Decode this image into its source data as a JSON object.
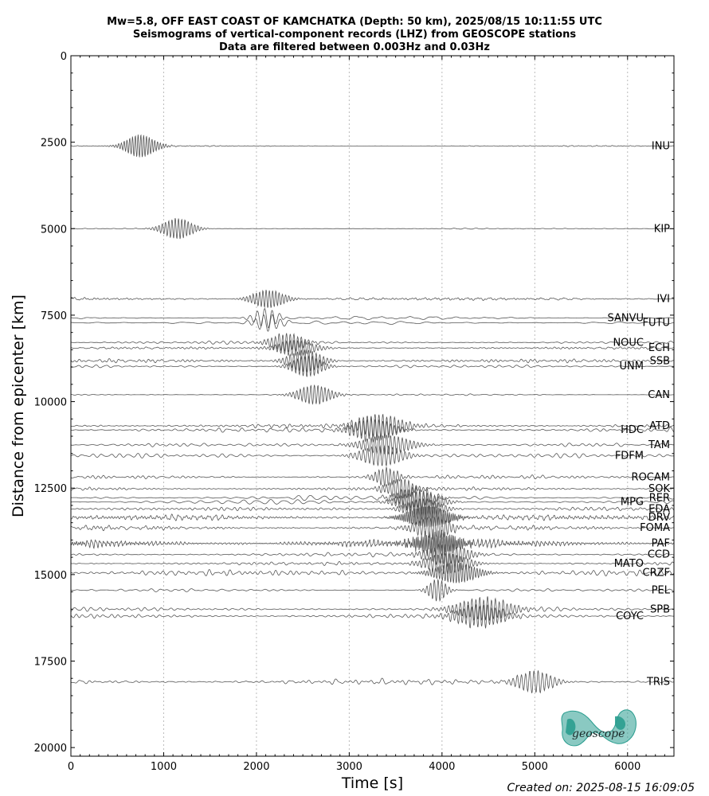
{
  "chart_data": {
    "type": "line",
    "title": [
      "Mw=5.8, OFF EAST COAST OF KAMCHATKA (Depth: 50 km), 2025/08/15 10:11:55 UTC",
      "Seismograms of vertical-component records (LHZ) from GEOSCOPE stations",
      "Data are filtered between 0.003Hz and 0.03Hz"
    ],
    "xlabel": "Time [s]",
    "ylabel": "Distance from epicenter [km]",
    "xlim": [
      0,
      6500
    ],
    "ylim": [
      20250,
      0
    ],
    "y_inverted": true,
    "x_ticks": [
      0,
      1000,
      2000,
      3000,
      4000,
      5000,
      6000
    ],
    "y_ticks": [
      0,
      2500,
      5000,
      7500,
      10000,
      12500,
      15000,
      17500,
      20000
    ],
    "grid": "dotted vertical lines at x ticks",
    "trace_color": "#555555",
    "stations": [
      {
        "name": "INU",
        "distance": 2610,
        "burst_start": 500,
        "burst_end": 1000,
        "burst_amp": 330,
        "noise_amp": 15,
        "period": 30,
        "label_side": "right"
      },
      {
        "name": "KIP",
        "distance": 5000,
        "burst_start": 900,
        "burst_end": 1400,
        "burst_amp": 300,
        "noise_amp": 12,
        "period": 35,
        "label_side": "right"
      },
      {
        "name": "IVI",
        "distance": 7030,
        "burst_start": 1850,
        "burst_end": 2400,
        "burst_amp": 260,
        "noise_amp": 40,
        "period": 35,
        "label_side": "right"
      },
      {
        "name": "SANVU",
        "distance": 7580,
        "burst_start": 1900,
        "burst_end": 2300,
        "burst_amp": 280,
        "noise_amp": 35,
        "period": 80,
        "label_side": "left"
      },
      {
        "name": "FUTU",
        "distance": 7720,
        "burst_start": 1900,
        "burst_end": 2350,
        "burst_amp": 240,
        "noise_amp": 45,
        "period": 90,
        "label_side": "right"
      },
      {
        "name": "NOUC",
        "distance": 8290,
        "burst_start": 2050,
        "burst_end": 2600,
        "burst_amp": 260,
        "noise_amp": 30,
        "period": 40,
        "label_side": "left"
      },
      {
        "name": "ECH",
        "distance": 8450,
        "burst_start": 2100,
        "burst_end": 2750,
        "burst_amp": 220,
        "noise_amp": 35,
        "period": 40,
        "label_side": "right"
      },
      {
        "name": "SSB",
        "distance": 8820,
        "burst_start": 2250,
        "burst_end": 2800,
        "burst_amp": 320,
        "noise_amp": 40,
        "period": 40,
        "label_side": "right"
      },
      {
        "name": "UNM",
        "distance": 8980,
        "burst_start": 2300,
        "burst_end": 2800,
        "burst_amp": 300,
        "noise_amp": 40,
        "period": 40,
        "label_side": "left"
      },
      {
        "name": "CAN",
        "distance": 9800,
        "burst_start": 2350,
        "burst_end": 2900,
        "burst_amp": 280,
        "noise_amp": 20,
        "period": 38,
        "label_side": "right"
      },
      {
        "name": "ATD",
        "distance": 10700,
        "burst_start": 2900,
        "burst_end": 3700,
        "burst_amp": 330,
        "noise_amp": 55,
        "period": 42,
        "label_side": "right"
      },
      {
        "name": "HDC",
        "distance": 10820,
        "burst_start": 2900,
        "burst_end": 3600,
        "burst_amp": 320,
        "noise_amp": 45,
        "period": 42,
        "label_side": "left"
      },
      {
        "name": "TAM",
        "distance": 11250,
        "burst_start": 3000,
        "burst_end": 3800,
        "burst_amp": 280,
        "noise_amp": 35,
        "period": 42,
        "label_side": "right"
      },
      {
        "name": "FDFM",
        "distance": 11560,
        "burst_start": 3000,
        "burst_end": 3700,
        "burst_amp": 300,
        "noise_amp": 40,
        "period": 45,
        "label_side": "left"
      },
      {
        "name": "ROCAM",
        "distance": 12180,
        "burst_start": 3200,
        "burst_end": 3600,
        "burst_amp": 260,
        "noise_amp": 45,
        "period": 40,
        "label_side": "right"
      },
      {
        "name": "SOK",
        "distance": 12520,
        "burst_start": 3300,
        "burst_end": 3800,
        "burst_amp": 280,
        "noise_amp": 45,
        "period": 40,
        "label_side": "right"
      },
      {
        "name": "RER",
        "distance": 12780,
        "burst_start": 3400,
        "burst_end": 4000,
        "burst_amp": 300,
        "noise_amp": 60,
        "period": 40,
        "label_side": "right"
      },
      {
        "name": "MPG",
        "distance": 12900,
        "burst_start": 3400,
        "burst_end": 4100,
        "burst_amp": 300,
        "noise_amp": 60,
        "period": 40,
        "label_side": "left"
      },
      {
        "name": "EDA",
        "distance": 13100,
        "burst_start": 3500,
        "burst_end": 4100,
        "burst_amp": 300,
        "noise_amp": 55,
        "period": 40,
        "label_side": "right"
      },
      {
        "name": "DRV",
        "distance": 13350,
        "burst_start": 3500,
        "burst_end": 4200,
        "burst_amp": 320,
        "noise_amp": 80,
        "period": 20,
        "label_side": "right"
      },
      {
        "name": "FOMA",
        "distance": 13650,
        "burst_start": 3600,
        "burst_end": 4200,
        "burst_amp": 320,
        "noise_amp": 55,
        "period": 40,
        "label_side": "right"
      },
      {
        "name": "PAF",
        "distance": 14100,
        "burst_start": 3600,
        "burst_end": 4300,
        "burst_amp": 340,
        "noise_amp": 110,
        "period": 18,
        "label_side": "right"
      },
      {
        "name": "CCD",
        "distance": 14420,
        "burst_start": 3700,
        "burst_end": 4400,
        "burst_amp": 300,
        "noise_amp": 60,
        "period": 40,
        "label_side": "right"
      },
      {
        "name": "MATO",
        "distance": 14680,
        "burst_start": 3700,
        "burst_end": 4400,
        "burst_amp": 300,
        "noise_amp": 60,
        "period": 40,
        "label_side": "left"
      },
      {
        "name": "CRZF",
        "distance": 14950,
        "burst_start": 3800,
        "burst_end": 4500,
        "burst_amp": 300,
        "noise_amp": 90,
        "period": 30,
        "label_side": "right"
      },
      {
        "name": "PEL",
        "distance": 15450,
        "burst_start": 3800,
        "burst_end": 4100,
        "burst_amp": 320,
        "noise_amp": 40,
        "period": 40,
        "label_side": "right"
      },
      {
        "name": "SPB",
        "distance": 16000,
        "burst_start": 4000,
        "burst_end": 4900,
        "burst_amp": 320,
        "noise_amp": 50,
        "period": 42,
        "label_side": "right"
      },
      {
        "name": "COYC",
        "distance": 16200,
        "burst_start": 4000,
        "burst_end": 4800,
        "burst_amp": 320,
        "noise_amp": 60,
        "period": 42,
        "label_side": "left"
      },
      {
        "name": "TRIS",
        "distance": 18100,
        "burst_start": 4700,
        "burst_end": 5300,
        "burst_amp": 320,
        "noise_amp": 70,
        "period": 45,
        "label_side": "right"
      }
    ],
    "logo_text": "geoscope",
    "logo_color": "#2a9d8f"
  },
  "created_on": "Created on: 2025-08-15 16:09:05"
}
